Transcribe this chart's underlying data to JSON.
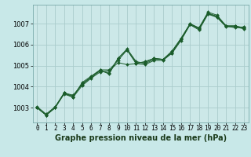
{
  "background_color": "#c8e8e8",
  "plot_bg_color": "#cce8e8",
  "grid_color": "#aacccc",
  "line_color": "#1a5c2a",
  "marker_color": "#1a5c2a",
  "title": "Graphe pression niveau de la mer (hPa)",
  "xlabel_fontsize": 5.5,
  "ylabel_fontsize": 6.0,
  "title_fontsize": 7.0,
  "x_labels": [
    "0",
    "1",
    "2",
    "3",
    "4",
    "5",
    "6",
    "7",
    "8",
    "9",
    "10",
    "11",
    "12",
    "13",
    "14",
    "15",
    "16",
    "17",
    "18",
    "19",
    "20",
    "21",
    "22",
    "23"
  ],
  "ylim": [
    1002.3,
    1007.9
  ],
  "xlim": [
    -0.5,
    23.5
  ],
  "yticks": [
    1003,
    1004,
    1005,
    1006,
    1007
  ],
  "series": [
    [
      1003.0,
      1002.65,
      1003.0,
      1003.7,
      1003.55,
      1004.15,
      1004.45,
      1004.75,
      1004.65,
      1005.35,
      1005.8,
      1005.2,
      1005.1,
      1005.3,
      1005.3,
      1005.7,
      1006.3,
      1007.0,
      1006.8,
      1007.55,
      1007.4,
      1006.9,
      1006.9,
      1006.8
    ],
    [
      1003.0,
      1002.65,
      1003.0,
      1003.65,
      1003.5,
      1004.05,
      1004.4,
      1004.7,
      1004.75,
      1005.15,
      1005.05,
      1005.1,
      1005.2,
      1005.35,
      1005.3,
      1005.6,
      1006.25,
      1006.95,
      1006.75,
      1007.5,
      1007.35,
      1006.9,
      1006.8,
      1006.85
    ],
    [
      1003.05,
      1002.7,
      1003.05,
      1003.7,
      1003.6,
      1004.1,
      1004.45,
      1004.8,
      1004.8,
      1005.25,
      1005.75,
      1005.15,
      1005.15,
      1005.35,
      1005.3,
      1005.65,
      1006.3,
      1006.98,
      1006.78,
      1007.48,
      1007.32,
      1006.88,
      1006.88,
      1006.78
    ],
    [
      1003.0,
      1002.65,
      1003.0,
      1003.7,
      1003.5,
      1004.2,
      1004.5,
      1004.8,
      1004.6,
      1005.35,
      1005.75,
      1005.1,
      1005.05,
      1005.25,
      1005.25,
      1005.6,
      1006.2,
      1006.95,
      1006.7,
      1007.45,
      1007.3,
      1006.85,
      1006.85,
      1006.75
    ]
  ]
}
